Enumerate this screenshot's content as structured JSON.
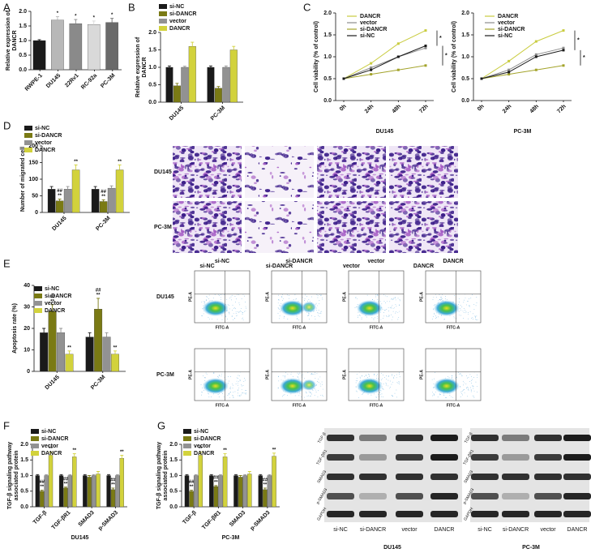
{
  "chart_data": [
    {
      "type": "bar",
      "panel": "A",
      "categories": [
        "RWPE-1",
        "DU145",
        "22Rv1",
        "RC-92a",
        "PC-3M"
      ],
      "values": [
        1.0,
        1.7,
        1.58,
        1.55,
        1.62
      ],
      "errors": [
        0.03,
        0.12,
        0.14,
        0.12,
        0.14
      ],
      "colors": [
        "#1a1a1a",
        "#b8b8b8",
        "#8a8a8a",
        "#d9d9d9",
        "#6a6a6a"
      ],
      "annotations": [
        null,
        [
          "*"
        ],
        [
          "*"
        ],
        [
          "*"
        ],
        [
          "*"
        ]
      ],
      "y_label": [
        "Relative expression of",
        "DANCR"
      ],
      "ylim": [
        0,
        2
      ],
      "yticks": [
        {
          "value": 0,
          "label": "0.0"
        },
        0.5,
        {
          "value": 1,
          "label": "1.0"
        },
        1.5,
        {
          "value": 2,
          "label": "2.0"
        }
      ]
    },
    {
      "type": "bar",
      "panel": "B",
      "categories": [
        "DU145",
        "PC-3M"
      ],
      "series": [
        {
          "name": "si-NC",
          "color": "#1a1a1a",
          "values": [
            1.0,
            1.0
          ],
          "errors": [
            0.04,
            0.04
          ]
        },
        {
          "name": "si-DANCR",
          "color": "#7a7a14",
          "values": [
            0.47,
            0.4
          ],
          "errors": [
            0.07,
            0.05
          ]
        },
        {
          "name": "vector",
          "color": "#929292",
          "values": [
            1.0,
            1.0
          ],
          "errors": [
            0.03,
            0.04
          ]
        },
        {
          "name": "DANCR",
          "color": "#d2d23c",
          "values": [
            1.6,
            1.5
          ],
          "errors": [
            0.12,
            0.1
          ]
        }
      ],
      "y_label": [
        "Relative expression of",
        "DANCR"
      ],
      "ylim": [
        0,
        2
      ],
      "yticks": [
        {
          "value": 0,
          "label": "0.0"
        },
        0.5,
        {
          "value": 1,
          "label": "1.0"
        },
        1.5,
        {
          "value": 2,
          "label": "2.0"
        }
      ]
    },
    {
      "type": "line",
      "panel": "C",
      "categories": [
        "0h",
        "24h",
        "48h",
        "72h"
      ],
      "series": [
        {
          "name": "DANCR",
          "color": "#c9cc3f",
          "values": [
            0.5,
            0.85,
            1.3,
            1.6
          ]
        },
        {
          "name": "vector",
          "color": "#8c8c8c",
          "values": [
            0.5,
            0.75,
            1.0,
            1.2
          ]
        },
        {
          "name": "si-DANCR",
          "color": "#a3a32a",
          "values": [
            0.5,
            0.6,
            0.7,
            0.8
          ]
        },
        {
          "name": "si-NC",
          "color": "#1a1a1a",
          "values": [
            0.5,
            0.7,
            1.0,
            1.25
          ]
        }
      ],
      "annotations": [
        "*",
        "*"
      ],
      "x_label": "DU145",
      "y_label": [
        "Cell viability (% of control)"
      ],
      "ylim": [
        0,
        2
      ],
      "yticks": [
        {
          "value": 0,
          "label": "0.0"
        },
        0.5,
        {
          "value": 1,
          "label": "1.0"
        },
        1.5,
        {
          "value": 2,
          "label": "2.0"
        }
      ]
    },
    {
      "type": "line",
      "categories": [
        "0h",
        "24h",
        "48h",
        "72h"
      ],
      "series": [
        {
          "name": "DANCR",
          "color": "#c9cc3f",
          "values": [
            0.5,
            0.9,
            1.35,
            1.6
          ]
        },
        {
          "name": "vector",
          "color": "#8c8c8c",
          "values": [
            0.5,
            0.7,
            1.05,
            1.2
          ]
        },
        {
          "name": "si-DANCR",
          "color": "#a3a32a",
          "values": [
            0.5,
            0.6,
            0.7,
            0.8
          ]
        },
        {
          "name": "si-NC",
          "color": "#1a1a1a",
          "values": [
            0.5,
            0.65,
            1.0,
            1.15
          ]
        }
      ],
      "annotations": [
        "*",
        "*"
      ],
      "x_label": "PC-3M",
      "y_label": [
        "Cell viability (% of control)"
      ],
      "ylim": [
        0,
        2
      ],
      "yticks": [
        {
          "value": 0,
          "label": "0.0"
        },
        0.5,
        {
          "value": 1,
          "label": "1.0"
        },
        1.5,
        {
          "value": 2,
          "label": "2.0"
        }
      ]
    },
    {
      "type": "bar",
      "panel": "D",
      "categories": [
        "DU145",
        "PC-3M"
      ],
      "series": [
        {
          "name": "si-NC",
          "color": "#1a1a1a",
          "values": [
            70,
            70
          ],
          "errors": [
            8,
            8
          ]
        },
        {
          "name": "si-DANCR",
          "color": "#7a7a14",
          "values": [
            35,
            33
          ],
          "errors": [
            5,
            5
          ],
          "annotations": [
            [
              "##",
              "**"
            ],
            [
              "##",
              "**"
            ]
          ]
        },
        {
          "name": "vector",
          "color": "#929292",
          "values": [
            70,
            73
          ],
          "errors": [
            8,
            7
          ]
        },
        {
          "name": "DANCR",
          "color": "#d2d23c",
          "values": [
            128,
            128
          ],
          "errors": [
            15,
            15
          ],
          "annotations": [
            [
              "**"
            ],
            [
              "**"
            ]
          ]
        }
      ],
      "y_label": [
        "Number of migrated cell"
      ],
      "ylim": [
        0,
        200
      ],
      "yticks": [
        0,
        50,
        100,
        150,
        200
      ]
    },
    {
      "type": "bar",
      "panel": "E",
      "categories": [
        "DU145",
        "PC-3M"
      ],
      "series": [
        {
          "name": "si-NC",
          "color": "#1a1a1a",
          "values": [
            18,
            16
          ],
          "errors": [
            2,
            2
          ]
        },
        {
          "name": "si-DANCR",
          "color": "#7a7a14",
          "values": [
            28,
            29
          ],
          "errors": [
            3,
            5
          ],
          "annotations": [
            [
              "##",
              "**"
            ],
            [
              "##",
              "**"
            ]
          ]
        },
        {
          "name": "vector",
          "color": "#929292",
          "values": [
            18,
            16
          ],
          "errors": [
            2,
            2
          ]
        },
        {
          "name": "DANCR",
          "color": "#d2d23c",
          "values": [
            8,
            8
          ],
          "errors": [
            1.5,
            1.5
          ],
          "annotations": [
            [
              "**"
            ],
            [
              "**"
            ]
          ]
        }
      ],
      "y_label": [
        "Apoptosis rate (%)"
      ],
      "ylim": [
        0,
        40
      ],
      "yticks": [
        0,
        10,
        20,
        30,
        40
      ]
    },
    {
      "type": "bar",
      "panel": "F",
      "categories": [
        "TGF-β",
        "TGF-βR1",
        "SMAD3",
        "p-SMAD3"
      ],
      "series": [
        {
          "name": "si-NC",
          "color": "#1a1a1a",
          "values": [
            1.0,
            1.0,
            1.0,
            1.0
          ],
          "errors": [
            0.03,
            0.03,
            0.03,
            0.03
          ]
        },
        {
          "name": "si-DANCR",
          "color": "#7a7a14",
          "values": [
            0.5,
            0.6,
            0.95,
            0.55
          ],
          "errors": [
            0.03,
            0.03,
            0.05,
            0.05
          ],
          "annotations": [
            [
              "##",
              "**"
            ],
            [
              "##",
              "**"
            ],
            null,
            [
              "##",
              "**"
            ]
          ]
        },
        {
          "name": "vector",
          "color": "#929292",
          "values": [
            1.0,
            1.0,
            1.0,
            1.0
          ],
          "errors": [
            0.03,
            0.03,
            0.03,
            0.03
          ]
        },
        {
          "name": "DANCR",
          "color": "#d2d23c",
          "values": [
            1.65,
            1.6,
            1.05,
            1.55
          ],
          "errors": [
            0.1,
            0.1,
            0.08,
            0.1
          ],
          "annotations": [
            [
              "**"
            ],
            [
              "**"
            ],
            null,
            [
              "**"
            ]
          ]
        }
      ],
      "x_label": "DU145",
      "y_label": [
        "TGF-β signaling pathway",
        "associated protein"
      ],
      "ylim": [
        0,
        2
      ],
      "yticks": [
        {
          "value": 0,
          "label": "0.0"
        },
        0.5,
        {
          "value": 1,
          "label": "1.0"
        },
        1.5,
        {
          "value": 2,
          "label": "2.0"
        }
      ]
    },
    {
      "type": "bar",
      "panel": "G",
      "categories": [
        "TGF-β",
        "TGF-βR1",
        "SMAD3",
        "p-SMAD3"
      ],
      "series": [
        {
          "name": "si-NC",
          "color": "#1a1a1a",
          "values": [
            1.0,
            1.0,
            1.0,
            1.0
          ],
          "errors": [
            0.03,
            0.03,
            0.03,
            0.03
          ]
        },
        {
          "name": "si-DANCR",
          "color": "#7a7a14",
          "values": [
            0.5,
            0.65,
            0.95,
            0.55
          ],
          "errors": [
            0.03,
            0.03,
            0.05,
            0.05
          ],
          "annotations": [
            [
              "##",
              "**"
            ],
            [
              "##",
              "**"
            ],
            null,
            [
              "##",
              "**"
            ]
          ]
        },
        {
          "name": "vector",
          "color": "#929292",
          "values": [
            1.0,
            1.0,
            1.0,
            1.0
          ],
          "errors": [
            0.03,
            0.03,
            0.03,
            0.03
          ]
        },
        {
          "name": "DANCR",
          "color": "#d2d23c",
          "values": [
            1.65,
            1.6,
            1.05,
            1.62
          ],
          "errors": [
            0.1,
            0.1,
            0.08,
            0.1
          ],
          "annotations": [
            [
              "**"
            ],
            [
              "**"
            ],
            null,
            [
              "**"
            ]
          ]
        }
      ],
      "x_label": "PC-3M",
      "y_label": [
        "TGF-β signaling pathway",
        "associated protein"
      ],
      "ylim": [
        0,
        2
      ],
      "yticks": [
        {
          "value": 0,
          "label": "0.0"
        },
        0.5,
        {
          "value": 1,
          "label": "1.0"
        },
        1.5,
        {
          "value": 2,
          "label": "2.0"
        }
      ]
    }
  ],
  "micrographs": {
    "rows": [
      "DU145",
      "PC-3M"
    ],
    "columns": [
      "si-NC",
      "si-DANCR",
      "vector",
      "DANCR"
    ]
  },
  "flow_cytometry": {
    "rows": [
      "DU145",
      "PC-3M"
    ],
    "columns": [
      "si-NC",
      "si-DANCR",
      "vector",
      "DANCR"
    ],
    "x_label": "FITC-A",
    "y_label": "PE-A"
  },
  "western_blot": {
    "proteins": [
      "TGF-β",
      "TGF-βR1",
      "SMAD3",
      "p-SMAD3",
      "GAPDH"
    ],
    "lanes": [
      "si-NC",
      "si-DANCR",
      "vector",
      "DANCR"
    ],
    "cell_lines": [
      "DU145",
      "PC-3M"
    ]
  }
}
